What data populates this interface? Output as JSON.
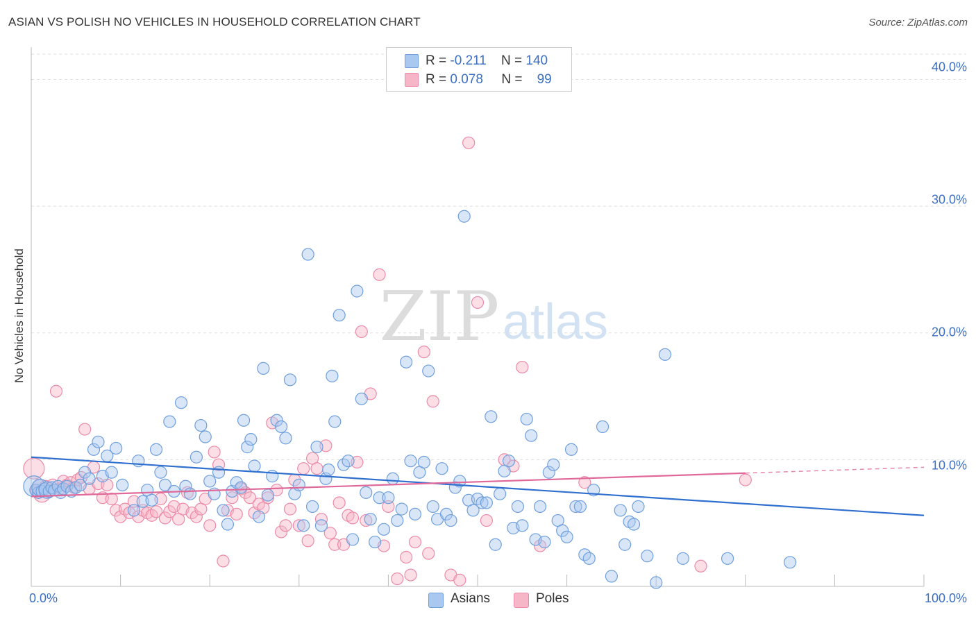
{
  "title": "ASIAN VS POLISH NO VEHICLES IN HOUSEHOLD CORRELATION CHART",
  "source": "Source: ZipAtlas.com",
  "watermark": {
    "zip": "ZIP",
    "atlas": "atlas"
  },
  "legend": {
    "asians": {
      "r_label": "R =",
      "r_value": "-0.211",
      "n_label": "N =",
      "n_value": "140"
    },
    "poles": {
      "r_label": "R =",
      "r_value": "0.078",
      "n_label": "N =",
      "n_value": "99"
    }
  },
  "bottom_legend": {
    "asians": "Asians",
    "poles": "Poles"
  },
  "colors": {
    "asians_fill": "#a9c8ef",
    "asians_stroke": "#6f9fdc",
    "asians_line": "#2f6fcf",
    "poles_fill": "#f6b6c8",
    "poles_stroke": "#ec8aa8",
    "poles_line": "#e0699a",
    "tick_label": "#3b6fc5",
    "grid": "#dddddd"
  },
  "chart_data": {
    "type": "scatter",
    "title": "ASIAN VS POLISH NO VEHICLES IN HOUSEHOLD CORRELATION CHART",
    "xlabel": "",
    "ylabel": "No Vehicles in Household",
    "xlim": [
      0,
      100
    ],
    "ylim": [
      0,
      42
    ],
    "x_tick_labels": [
      "0.0%",
      "100.0%"
    ],
    "y_ticks": [
      10,
      20,
      30,
      40
    ],
    "y_tick_labels": [
      "10.0%",
      "20.0%",
      "30.0%",
      "40.0%"
    ],
    "grid": "horizontal dashed",
    "legend_position": "top-center",
    "series": [
      {
        "name": "Asians",
        "r": -0.211,
        "n": 140,
        "trend": {
          "x": [
            0,
            100
          ],
          "y": [
            10.2,
            5.6
          ],
          "dashed_x": null
        },
        "points": [
          [
            0.3,
            7.9
          ],
          [
            0.5,
            7.6
          ],
          [
            0.8,
            7.4
          ],
          [
            1.0,
            7.8
          ],
          [
            1.2,
            7.5
          ],
          [
            1.5,
            7.7
          ],
          [
            1.8,
            7.6
          ],
          [
            2.0,
            7.5
          ],
          [
            2.3,
            7.8
          ],
          [
            2.6,
            7.6
          ],
          [
            3.0,
            7.9
          ],
          [
            3.3,
            7.4
          ],
          [
            3.6,
            7.7
          ],
          [
            4.0,
            7.9
          ],
          [
            4.5,
            7.5
          ],
          [
            5.0,
            7.8
          ],
          [
            5.5,
            8.0
          ],
          [
            6.0,
            9.0
          ],
          [
            6.5,
            8.5
          ],
          [
            7.0,
            10.8
          ],
          [
            7.5,
            11.4
          ],
          [
            8.0,
            8.7
          ],
          [
            8.5,
            10.3
          ],
          [
            9.0,
            9.0
          ],
          [
            9.5,
            10.9
          ],
          [
            10.2,
            8.0
          ],
          [
            11.5,
            6.0
          ],
          [
            12.0,
            9.9
          ],
          [
            12.5,
            6.7
          ],
          [
            13.0,
            7.6
          ],
          [
            13.5,
            6.8
          ],
          [
            14.0,
            10.8
          ],
          [
            14.5,
            9.0
          ],
          [
            15.0,
            8.0
          ],
          [
            15.5,
            13.0
          ],
          [
            16.0,
            7.5
          ],
          [
            16.8,
            14.5
          ],
          [
            17.3,
            7.9
          ],
          [
            17.8,
            7.3
          ],
          [
            18.5,
            10.2
          ],
          [
            19.0,
            12.7
          ],
          [
            19.5,
            11.8
          ],
          [
            20.0,
            8.3
          ],
          [
            20.5,
            7.3
          ],
          [
            21.0,
            9.0
          ],
          [
            21.5,
            6.0
          ],
          [
            22.0,
            4.9
          ],
          [
            22.5,
            7.5
          ],
          [
            23.0,
            8.2
          ],
          [
            23.5,
            7.8
          ],
          [
            23.8,
            13.1
          ],
          [
            24.2,
            11.0
          ],
          [
            24.6,
            11.6
          ],
          [
            25.0,
            9.5
          ],
          [
            25.5,
            5.5
          ],
          [
            26.0,
            17.2
          ],
          [
            26.5,
            7.2
          ],
          [
            27.0,
            8.7
          ],
          [
            27.5,
            13.1
          ],
          [
            28.0,
            12.6
          ],
          [
            28.5,
            11.7
          ],
          [
            29.0,
            16.3
          ],
          [
            29.5,
            7.3
          ],
          [
            30.0,
            8.0
          ],
          [
            30.5,
            4.8
          ],
          [
            31.0,
            26.2
          ],
          [
            31.5,
            6.3
          ],
          [
            32.0,
            11.0
          ],
          [
            32.5,
            4.8
          ],
          [
            33.0,
            8.5
          ],
          [
            33.3,
            9.2
          ],
          [
            33.7,
            16.6
          ],
          [
            34.0,
            13.0
          ],
          [
            34.5,
            21.4
          ],
          [
            35.0,
            9.6
          ],
          [
            35.5,
            9.9
          ],
          [
            36.0,
            3.7
          ],
          [
            36.5,
            23.3
          ],
          [
            37.0,
            14.8
          ],
          [
            37.5,
            7.4
          ],
          [
            38.0,
            5.3
          ],
          [
            38.5,
            3.5
          ],
          [
            39.0,
            7.0
          ],
          [
            39.5,
            4.5
          ],
          [
            40.0,
            7.0
          ],
          [
            40.5,
            8.5
          ],
          [
            41.0,
            5.2
          ],
          [
            41.5,
            6.1
          ],
          [
            42.0,
            17.7
          ],
          [
            42.5,
            9.9
          ],
          [
            43.0,
            5.7
          ],
          [
            43.5,
            9.0
          ],
          [
            44.0,
            9.8
          ],
          [
            44.5,
            17.0
          ],
          [
            45.0,
            6.3
          ],
          [
            45.5,
            5.3
          ],
          [
            46.0,
            9.3
          ],
          [
            46.5,
            5.7
          ],
          [
            47.0,
            5.2
          ],
          [
            47.5,
            7.8
          ],
          [
            48.0,
            8.3
          ],
          [
            48.5,
            29.2
          ],
          [
            49.0,
            6.8
          ],
          [
            49.5,
            6.0
          ],
          [
            50.0,
            6.9
          ],
          [
            50.5,
            6.6
          ],
          [
            51.0,
            6.6
          ],
          [
            51.5,
            13.4
          ],
          [
            52.0,
            3.3
          ],
          [
            52.5,
            7.3
          ],
          [
            53.0,
            9.1
          ],
          [
            53.5,
            9.9
          ],
          [
            54.0,
            4.6
          ],
          [
            54.5,
            6.3
          ],
          [
            55.0,
            4.8
          ],
          [
            55.5,
            13.2
          ],
          [
            56.0,
            11.9
          ],
          [
            56.5,
            3.7
          ],
          [
            57.0,
            6.3
          ],
          [
            57.5,
            3.5
          ],
          [
            58.0,
            9.0
          ],
          [
            58.5,
            9.6
          ],
          [
            59.0,
            5.2
          ],
          [
            59.5,
            4.4
          ],
          [
            60.0,
            3.9
          ],
          [
            60.5,
            10.8
          ],
          [
            61.0,
            6.3
          ],
          [
            61.5,
            6.3
          ],
          [
            62.0,
            2.5
          ],
          [
            62.5,
            2.2
          ],
          [
            63.0,
            7.6
          ],
          [
            64.0,
            12.6
          ],
          [
            65.0,
            0.8
          ],
          [
            66.0,
            6.0
          ],
          [
            66.5,
            3.3
          ],
          [
            67.0,
            5.1
          ],
          [
            67.5,
            4.9
          ],
          [
            68.0,
            6.3
          ],
          [
            69.0,
            2.4
          ],
          [
            70.0,
            0.3
          ],
          [
            71.0,
            18.3
          ],
          [
            73.0,
            2.2
          ],
          [
            78.0,
            2.2
          ],
          [
            85.0,
            1.9
          ]
        ]
      },
      {
        "name": "Poles",
        "r": 0.078,
        "n": 99,
        "trend": {
          "x": [
            0,
            100
          ],
          "y": [
            7.1,
            9.4
          ],
          "dashed_x": [
            80,
            100
          ]
        },
        "points": [
          [
            0.3,
            9.3
          ],
          [
            0.6,
            7.5
          ],
          [
            0.9,
            8.0
          ],
          [
            1.2,
            7.3
          ],
          [
            1.6,
            7.9
          ],
          [
            2.0,
            7.6
          ],
          [
            2.4,
            8.0
          ],
          [
            2.8,
            15.4
          ],
          [
            3.2,
            7.7
          ],
          [
            3.6,
            8.3
          ],
          [
            4.0,
            8.0
          ],
          [
            4.4,
            8.2
          ],
          [
            4.8,
            7.8
          ],
          [
            5.2,
            8.4
          ],
          [
            5.6,
            8.6
          ],
          [
            6.0,
            12.4
          ],
          [
            6.5,
            7.7
          ],
          [
            7.0,
            9.4
          ],
          [
            7.5,
            8.1
          ],
          [
            8.0,
            7.0
          ],
          [
            8.5,
            8.0
          ],
          [
            9.0,
            6.9
          ],
          [
            9.5,
            6.0
          ],
          [
            10.0,
            5.5
          ],
          [
            10.5,
            6.1
          ],
          [
            11.0,
            5.8
          ],
          [
            11.5,
            6.7
          ],
          [
            12.0,
            5.5
          ],
          [
            12.5,
            6.0
          ],
          [
            13.0,
            5.8
          ],
          [
            13.5,
            5.6
          ],
          [
            14.0,
            5.9
          ],
          [
            14.5,
            6.9
          ],
          [
            15.0,
            5.4
          ],
          [
            15.5,
            5.9
          ],
          [
            16.0,
            6.3
          ],
          [
            16.5,
            5.3
          ],
          [
            17.0,
            6.1
          ],
          [
            17.5,
            7.4
          ],
          [
            18.0,
            5.8
          ],
          [
            18.5,
            5.5
          ],
          [
            19.0,
            6.1
          ],
          [
            19.5,
            6.9
          ],
          [
            20.0,
            4.8
          ],
          [
            20.5,
            10.6
          ],
          [
            21.0,
            9.6
          ],
          [
            21.5,
            2.0
          ],
          [
            22.0,
            6.0
          ],
          [
            22.5,
            7.0
          ],
          [
            23.0,
            5.7
          ],
          [
            23.5,
            7.7
          ],
          [
            24.0,
            7.4
          ],
          [
            24.5,
            7.0
          ],
          [
            25.0,
            5.8
          ],
          [
            25.5,
            6.5
          ],
          [
            26.0,
            6.2
          ],
          [
            26.5,
            7.0
          ],
          [
            27.0,
            12.9
          ],
          [
            27.5,
            7.6
          ],
          [
            28.0,
            4.3
          ],
          [
            28.5,
            4.8
          ],
          [
            29.0,
            6.1
          ],
          [
            29.5,
            8.4
          ],
          [
            30.0,
            4.8
          ],
          [
            30.5,
            9.3
          ],
          [
            31.0,
            3.6
          ],
          [
            31.5,
            10.1
          ],
          [
            32.0,
            9.3
          ],
          [
            32.5,
            5.3
          ],
          [
            33.0,
            11.1
          ],
          [
            33.5,
            4.2
          ],
          [
            34.0,
            3.3
          ],
          [
            34.5,
            6.6
          ],
          [
            35.0,
            3.3
          ],
          [
            35.5,
            5.6
          ],
          [
            36.0,
            5.4
          ],
          [
            36.5,
            9.8
          ],
          [
            37.0,
            20.1
          ],
          [
            37.5,
            5.2
          ],
          [
            38.0,
            15.2
          ],
          [
            39.0,
            24.6
          ],
          [
            39.5,
            3.2
          ],
          [
            40.0,
            6.3
          ],
          [
            41.0,
            0.6
          ],
          [
            42.0,
            2.3
          ],
          [
            42.5,
            0.9
          ],
          [
            43.0,
            3.5
          ],
          [
            44.0,
            18.5
          ],
          [
            44.5,
            2.6
          ],
          [
            45.0,
            14.6
          ],
          [
            47.0,
            0.9
          ],
          [
            48.0,
            0.5
          ],
          [
            49.0,
            35.0
          ],
          [
            50.0,
            22.4
          ],
          [
            51.0,
            5.2
          ],
          [
            53.0,
            10.0
          ],
          [
            54.0,
            9.5
          ],
          [
            55.0,
            17.3
          ],
          [
            57.0,
            3.2
          ],
          [
            62.0,
            8.2
          ],
          [
            75.0,
            1.6
          ],
          [
            80.0,
            8.4
          ]
        ]
      }
    ]
  }
}
